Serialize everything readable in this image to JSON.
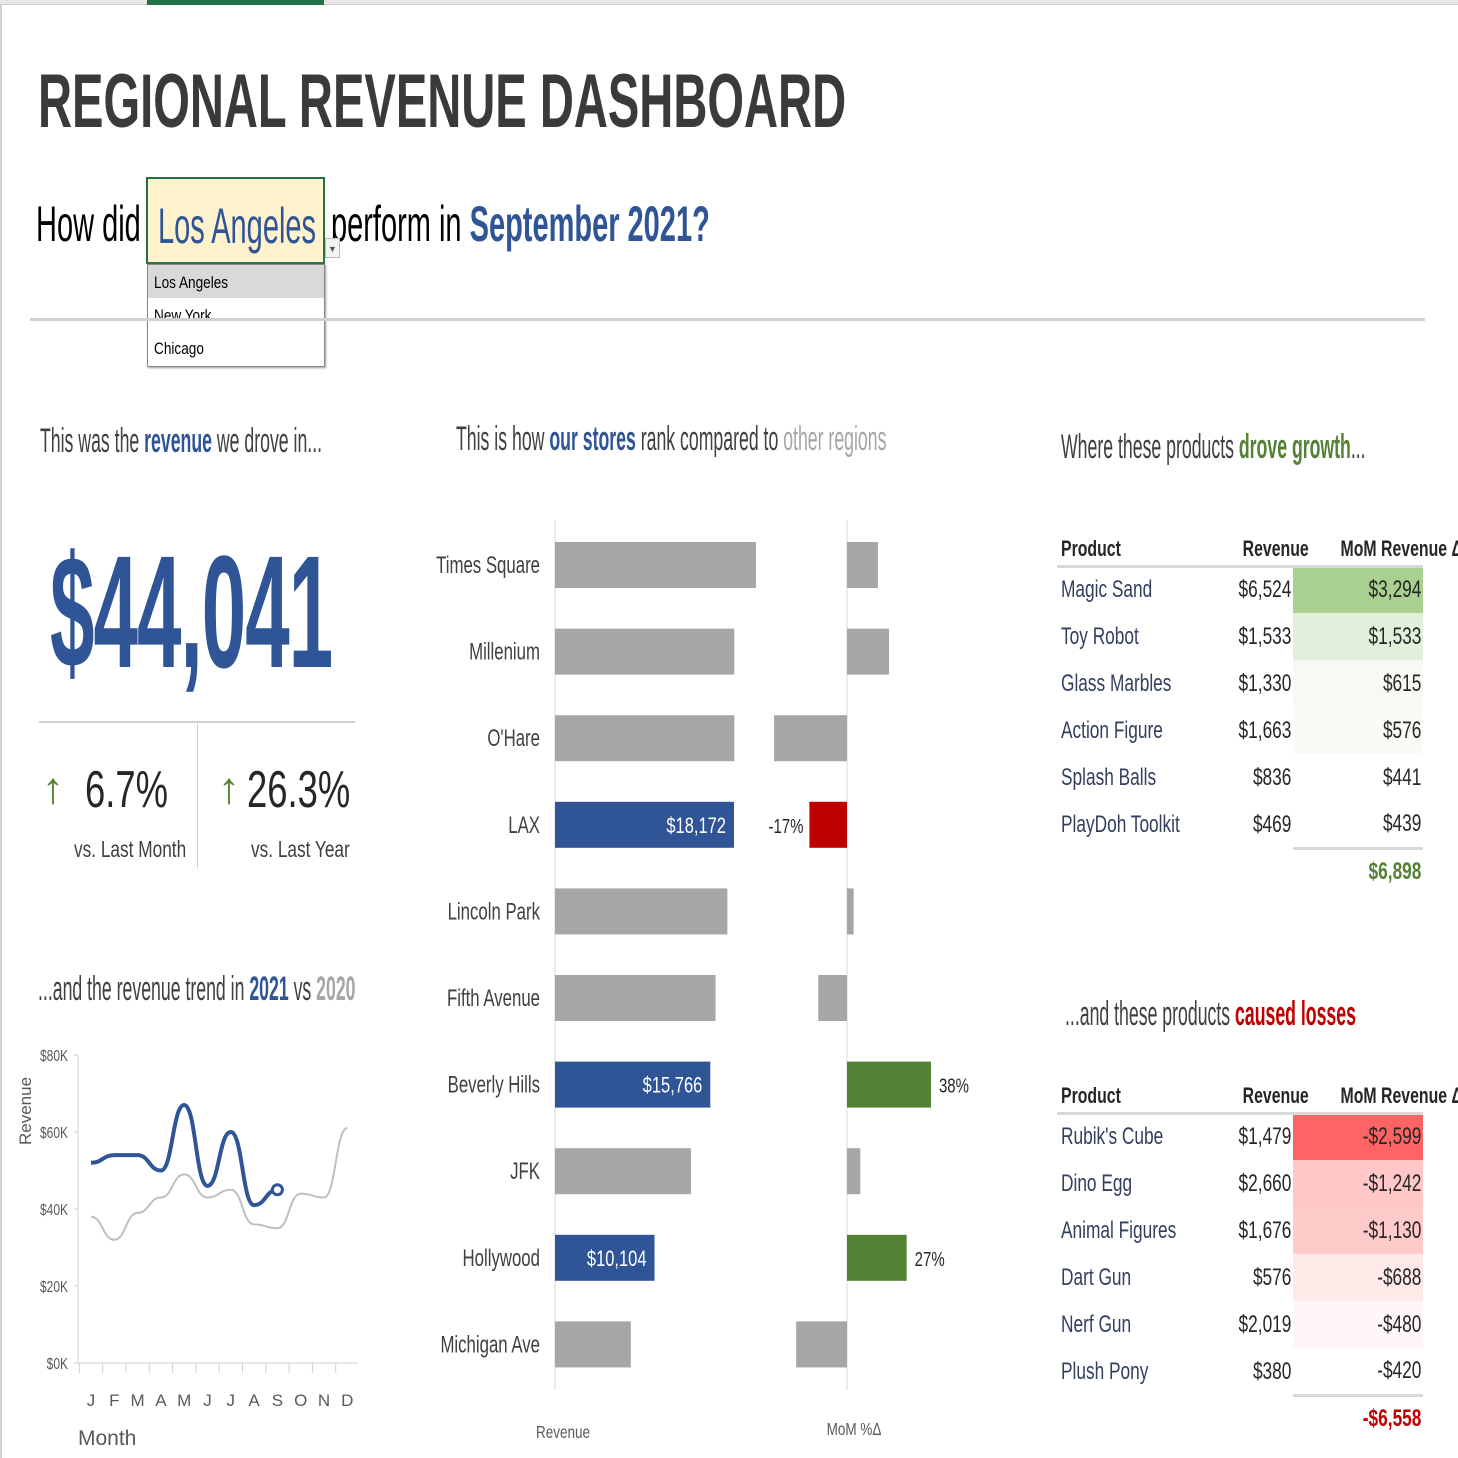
{
  "header": {
    "title": "REGIONAL REVENUE DASHBOARD",
    "question": {
      "prefix": "How did",
      "suffix": "perform in",
      "period": "September 2021?"
    },
    "region_select": {
      "value": "Los Angeles",
      "options": [
        "Los Angeles",
        "New York",
        "Chicago"
      ]
    }
  },
  "revenue": {
    "heading": {
      "a": "This was the",
      "b": "revenue",
      "c": "we drove in..."
    },
    "total": "$44,041",
    "kpis": [
      {
        "value": "6.7%",
        "label": "vs. Last Month",
        "icon": "arrow-up-icon"
      },
      {
        "value": "26.3%",
        "label": "vs. Last Year",
        "icon": "arrow-up-icon"
      }
    ]
  },
  "trend": {
    "heading": {
      "a": "...and the revenue trend in",
      "b": "2021",
      "c": "vs",
      "d": "2020"
    }
  },
  "ranking": {
    "heading": {
      "a": "This is how",
      "b": "our stores",
      "c": "rank compared to",
      "d": "other regions"
    }
  },
  "growth": {
    "heading": {
      "a": "Where these products",
      "b": "drove growth",
      "c": "..."
    },
    "columns": [
      "Product",
      "Revenue",
      "MoM Revenue Δ"
    ],
    "rows": [
      [
        "Magic Sand",
        "$6,524",
        "$3,294"
      ],
      [
        "Toy Robot",
        "$1,533",
        "$1,533"
      ],
      [
        "Glass Marbles",
        "$1,330",
        "$615"
      ],
      [
        "Action Figure",
        "$1,663",
        "$576"
      ],
      [
        "Splash Balls",
        "$836",
        "$441"
      ],
      [
        "PlayDoh Toolkit",
        "$469",
        "$439"
      ]
    ],
    "shades": [
      "#a9d08e",
      "#e2efda",
      "#f6faf3",
      "#f8fbf6",
      "#ffffff",
      "#ffffff"
    ],
    "total": "$6,898"
  },
  "losses": {
    "heading": {
      "a": "...and these products",
      "b": "caused losses"
    },
    "columns": [
      "Product",
      "Revenue",
      "MoM Revenue Δ"
    ],
    "rows": [
      [
        "Rubik's Cube",
        "$1,479",
        "-$2,599"
      ],
      [
        "Dino Egg",
        "$2,660",
        "-$1,242"
      ],
      [
        "Animal Figures",
        "$1,676",
        "-$1,130"
      ],
      [
        "Dart Gun",
        "$576",
        "-$688"
      ],
      [
        "Nerf Gun",
        "$2,019",
        "-$480"
      ],
      [
        "Plush Pony",
        "$380",
        "-$420"
      ]
    ],
    "shades": [
      "#ff6464",
      "#ffc7c7",
      "#ffcaca",
      "#ffe9e9",
      "#fff7f7",
      "#ffffff"
    ],
    "total": "-$6,558"
  },
  "colors": {
    "accent": "#2f5597",
    "neutral": "#a6a6a6",
    "positive": "#548235",
    "negative": "#c00000"
  },
  "chart_data": [
    {
      "type": "line",
      "title": "Revenue trend 2021 vs 2020",
      "xlabel": "Month",
      "ylabel": "Revenue",
      "categories": [
        "J",
        "F",
        "M",
        "A",
        "M",
        "J",
        "J",
        "A",
        "S",
        "O",
        "N",
        "D"
      ],
      "yticks": [
        "$0K",
        "$20K",
        "$40K",
        "$60K",
        "$80K"
      ],
      "ylim": [
        0,
        80000
      ],
      "series": [
        {
          "name": "2021",
          "values": [
            52000,
            54000,
            54000,
            50000,
            67000,
            46000,
            60000,
            41000,
            45000,
            null,
            null,
            null
          ]
        },
        {
          "name": "2020",
          "values": [
            38000,
            32000,
            39000,
            43000,
            49000,
            43000,
            45000,
            36000,
            35000,
            44000,
            43000,
            61000
          ]
        }
      ]
    },
    {
      "type": "bar",
      "title": "Store ranking",
      "xlabel": "Revenue",
      "xlabel2": "MoM %Δ",
      "categories": [
        "Times Square",
        "Millenium",
        "O'Hare",
        "LAX",
        "Lincoln Park",
        "Fifth Avenue",
        "Beverly Hills",
        "JFK",
        "Hollywood",
        "Michigan Ave"
      ],
      "highlight": [
        false,
        false,
        false,
        true,
        false,
        false,
        true,
        false,
        true,
        false
      ],
      "revenue": [
        20400,
        18200,
        18200,
        18172,
        17500,
        16300,
        15766,
        13800,
        10104,
        7700
      ],
      "revenue_labels": [
        null,
        null,
        null,
        "$18,172",
        null,
        null,
        "$15,766",
        null,
        "$10,104",
        null
      ],
      "mom_pct": [
        14,
        19,
        -33,
        -17,
        3,
        -13,
        38,
        6,
        27,
        -23
      ],
      "mom_labels": [
        null,
        null,
        null,
        "-17%",
        null,
        null,
        "38%",
        null,
        "27%",
        null
      ]
    }
  ]
}
